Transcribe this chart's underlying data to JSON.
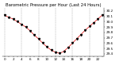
{
  "title": "Barometric Pressure per Hour (Last 24 Hours)",
  "hours": [
    0,
    1,
    2,
    3,
    4,
    5,
    6,
    7,
    8,
    9,
    10,
    11,
    12,
    13,
    14,
    15,
    16,
    17,
    18,
    19,
    20,
    21,
    22,
    23
  ],
  "pressure": [
    30.12,
    30.08,
    30.05,
    30.0,
    29.95,
    29.9,
    29.83,
    29.75,
    29.68,
    29.6,
    29.53,
    29.47,
    29.43,
    29.41,
    29.45,
    29.52,
    29.6,
    29.68,
    29.76,
    29.84,
    29.91,
    29.98,
    30.05,
    30.12
  ],
  "line_color": "#dd0000",
  "marker_color": "#000000",
  "bg_color": "#ffffff",
  "grid_color": "#999999",
  "title_fontsize": 3.8,
  "tick_fontsize": 3.0,
  "ylim": [
    29.35,
    30.25
  ],
  "yticks": [
    29.4,
    29.5,
    29.6,
    29.7,
    29.8,
    29.9,
    30.0,
    30.1,
    30.2
  ],
  "xlim": [
    -0.5,
    23.5
  ],
  "xticks": [
    0,
    1,
    2,
    3,
    4,
    5,
    6,
    7,
    8,
    9,
    10,
    11,
    12,
    13,
    14,
    15,
    16,
    17,
    18,
    19,
    20,
    21,
    22,
    23
  ],
  "grid_xticks": [
    0,
    4,
    8,
    12,
    16,
    20
  ]
}
